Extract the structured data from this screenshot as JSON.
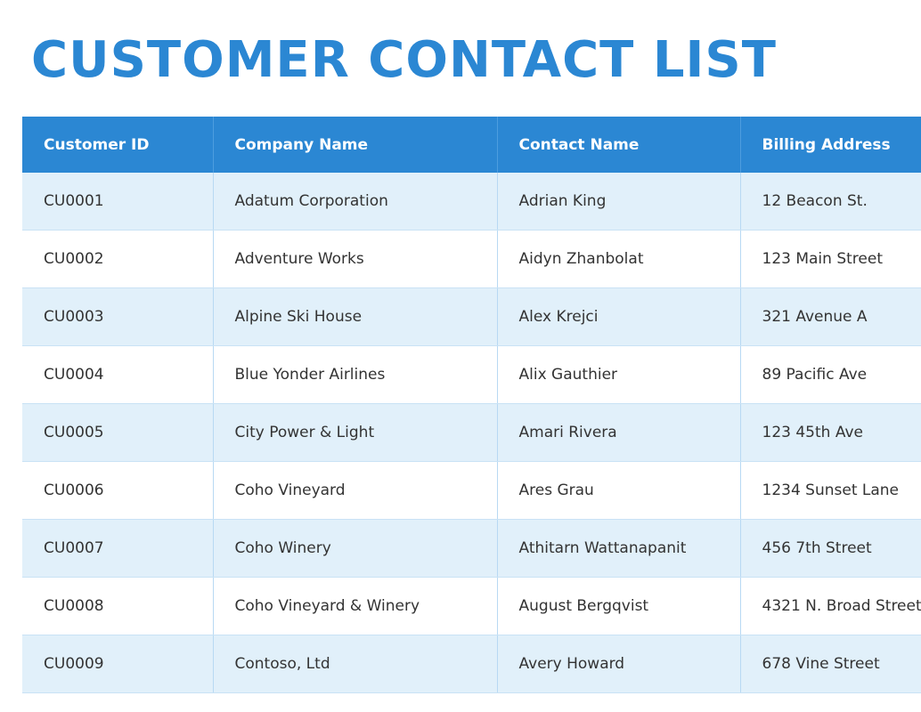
{
  "header": {
    "title": "CUSTOMER CONTACT LIST"
  },
  "table": {
    "columns": [
      "Customer ID",
      "Company Name",
      "Contact Name",
      "Billing Address"
    ],
    "rows": [
      [
        "CU0001",
        "Adatum Corporation",
        "Adrian King",
        "12 Beacon St."
      ],
      [
        "CU0002",
        "Adventure Works",
        "Aidyn Zhanbolat",
        "123 Main Street"
      ],
      [
        "CU0003",
        "Alpine Ski House",
        "Alex Krejci",
        "321 Avenue A"
      ],
      [
        "CU0004",
        "Blue Yonder Airlines",
        "Alix Gauthier",
        "89 Pacific Ave"
      ],
      [
        "CU0005",
        "City Power & Light",
        "Amari Rivera",
        "123 45th Ave"
      ],
      [
        "CU0006",
        "Coho Vineyard",
        "Ares Grau",
        "1234 Sunset Lane"
      ],
      [
        "CU0007",
        "Coho Winery",
        "Athitarn Wattanapanit",
        "456 7th Street"
      ],
      [
        "CU0008",
        "Coho Vineyard & Winery",
        "August Bergqvist",
        "4321 N. Broad Street"
      ],
      [
        "CU0009",
        "Contoso, Ltd",
        "Avery Howard",
        "678 Vine Street"
      ]
    ]
  }
}
